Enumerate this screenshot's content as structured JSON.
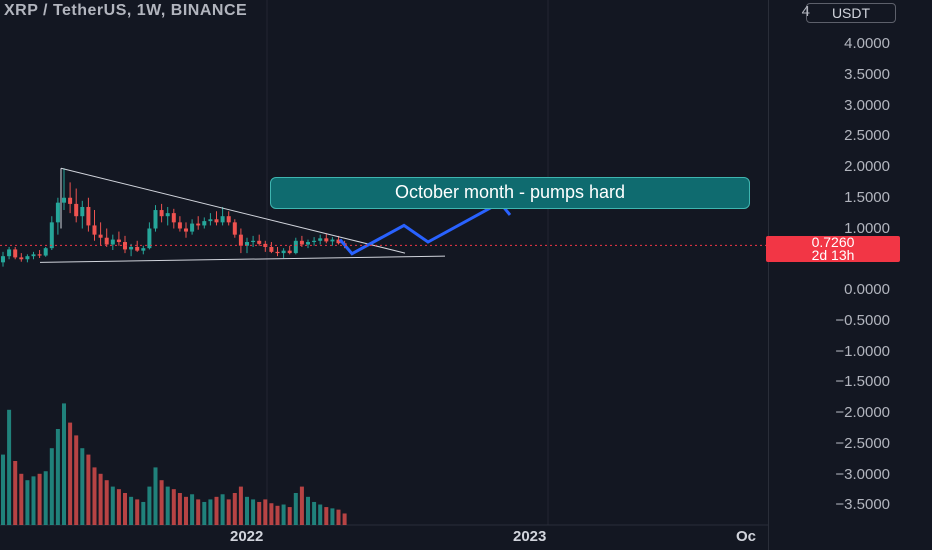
{
  "header": {
    "title": "XRP / TetherUS, 1W, BINANCE",
    "currency_button": "USDT"
  },
  "price_axis": {
    "labels": [
      "4.0000",
      "3.5000",
      "3.0000",
      "2.5000",
      "2.0000",
      "1.5000",
      "1.0000",
      "0.0000",
      "−0.5000",
      "−1.0000",
      "−1.5000",
      "−2.0000",
      "−2.5000",
      "−3.0000",
      "−3.5000"
    ],
    "label_values": [
      4.0,
      3.5,
      3.0,
      2.5,
      2.0,
      1.5,
      1.0,
      0.0,
      -0.5,
      -1.0,
      -1.5,
      -2.0,
      -2.5,
      -3.0,
      -3.5
    ],
    "top_partial": "4"
  },
  "time_axis": {
    "labels": [
      "2022",
      "2023",
      "Oc"
    ]
  },
  "current_price": {
    "value": "0.7260",
    "countdown": "2d 13h"
  },
  "annotation": {
    "text": "October month - pumps hard"
  },
  "colors": {
    "background": "#131722",
    "up": "#26a69a",
    "down": "#ef5350",
    "projection": "#2962ff",
    "price_tag": "#f23645",
    "callout": "#0f6b6f",
    "trendline": "#d1d4dc"
  },
  "chart_data": {
    "type": "candlestick",
    "title": "XRP / TetherUS, 1W, BINANCE",
    "y_unit": "USDT",
    "ylim": [
      -3.9,
      4.2
    ],
    "x_ticks": [
      "2022",
      "2023",
      "Oc"
    ],
    "last_price": 0.726,
    "triangle_pattern": {
      "resistance": [
        [
          0,
          1.98
        ],
        [
          60,
          0.6
        ]
      ],
      "support": [
        [
          0,
          0.45
        ],
        [
          60,
          0.55
        ]
      ]
    },
    "projection_path": [
      0.59,
      1.05,
      0.78,
      1.42,
      1.22
    ],
    "candles": [
      [
        0.45,
        0.62,
        0.38,
        0.55
      ],
      [
        0.55,
        0.7,
        0.5,
        0.66
      ],
      [
        0.66,
        0.7,
        0.5,
        0.53
      ],
      [
        0.53,
        0.6,
        0.46,
        0.5
      ],
      [
        0.5,
        0.58,
        0.45,
        0.55
      ],
      [
        0.55,
        0.62,
        0.5,
        0.58
      ],
      [
        0.58,
        0.65,
        0.52,
        0.56
      ],
      [
        0.56,
        0.7,
        0.54,
        0.68
      ],
      [
        0.68,
        1.2,
        0.65,
        1.1
      ],
      [
        1.1,
        1.5,
        0.9,
        1.42
      ],
      [
        1.42,
        1.98,
        1.3,
        1.5
      ],
      [
        1.5,
        1.75,
        1.25,
        1.4
      ],
      [
        1.4,
        1.65,
        1.1,
        1.2
      ],
      [
        1.2,
        1.45,
        1.0,
        1.35
      ],
      [
        1.35,
        1.5,
        0.95,
        1.05
      ],
      [
        1.05,
        1.3,
        0.8,
        0.9
      ],
      [
        0.9,
        1.1,
        0.72,
        0.85
      ],
      [
        0.85,
        1.0,
        0.7,
        0.74
      ],
      [
        0.74,
        0.9,
        0.65,
        0.82
      ],
      [
        0.82,
        0.95,
        0.72,
        0.78
      ],
      [
        0.78,
        0.88,
        0.6,
        0.66
      ],
      [
        0.66,
        0.75,
        0.55,
        0.7
      ],
      [
        0.7,
        0.8,
        0.62,
        0.64
      ],
      [
        0.64,
        0.72,
        0.58,
        0.68
      ],
      [
        0.68,
        1.1,
        0.66,
        1.0
      ],
      [
        1.0,
        1.38,
        0.95,
        1.3
      ],
      [
        1.3,
        1.4,
        1.1,
        1.2
      ],
      [
        1.2,
        1.35,
        1.05,
        1.25
      ],
      [
        1.25,
        1.32,
        1.0,
        1.1
      ],
      [
        1.1,
        1.2,
        0.95,
        1.0
      ],
      [
        1.0,
        1.1,
        0.85,
        0.95
      ],
      [
        0.95,
        1.15,
        0.9,
        1.08
      ],
      [
        1.08,
        1.2,
        0.98,
        1.05
      ],
      [
        1.05,
        1.18,
        1.0,
        1.12
      ],
      [
        1.12,
        1.25,
        1.05,
        1.15
      ],
      [
        1.15,
        1.28,
        1.05,
        1.1
      ],
      [
        1.1,
        1.35,
        1.05,
        1.2
      ],
      [
        1.2,
        1.28,
        1.05,
        1.1
      ],
      [
        1.1,
        1.15,
        0.85,
        0.9
      ],
      [
        0.9,
        1.0,
        0.6,
        0.72
      ],
      [
        0.72,
        0.85,
        0.6,
        0.78
      ],
      [
        0.78,
        0.88,
        0.7,
        0.8
      ],
      [
        0.8,
        0.9,
        0.72,
        0.75
      ],
      [
        0.75,
        0.8,
        0.62,
        0.7
      ],
      [
        0.7,
        0.78,
        0.6,
        0.62
      ],
      [
        0.62,
        0.7,
        0.55,
        0.6
      ],
      [
        0.6,
        0.68,
        0.52,
        0.64
      ],
      [
        0.64,
        0.72,
        0.58,
        0.6
      ],
      [
        0.6,
        0.85,
        0.58,
        0.8
      ],
      [
        0.8,
        0.88,
        0.7,
        0.74
      ],
      [
        0.74,
        0.82,
        0.68,
        0.78
      ],
      [
        0.78,
        0.86,
        0.72,
        0.8
      ],
      [
        0.8,
        0.9,
        0.74,
        0.84
      ],
      [
        0.84,
        0.92,
        0.76,
        0.79
      ],
      [
        0.79,
        0.86,
        0.72,
        0.82
      ],
      [
        0.82,
        0.88,
        0.74,
        0.76
      ],
      [
        0.76,
        0.8,
        0.68,
        0.73
      ]
    ],
    "volume": [
      0.55,
      0.9,
      0.5,
      0.4,
      0.35,
      0.38,
      0.4,
      0.42,
      0.6,
      0.75,
      0.95,
      0.8,
      0.7,
      0.6,
      0.55,
      0.45,
      0.4,
      0.35,
      0.3,
      0.28,
      0.25,
      0.22,
      0.2,
      0.18,
      0.3,
      0.45,
      0.35,
      0.3,
      0.28,
      0.25,
      0.22,
      0.24,
      0.2,
      0.18,
      0.2,
      0.22,
      0.24,
      0.2,
      0.25,
      0.3,
      0.22,
      0.2,
      0.18,
      0.2,
      0.17,
      0.15,
      0.16,
      0.14,
      0.25,
      0.3,
      0.22,
      0.18,
      0.16,
      0.14,
      0.13,
      0.12,
      0.09
    ]
  }
}
